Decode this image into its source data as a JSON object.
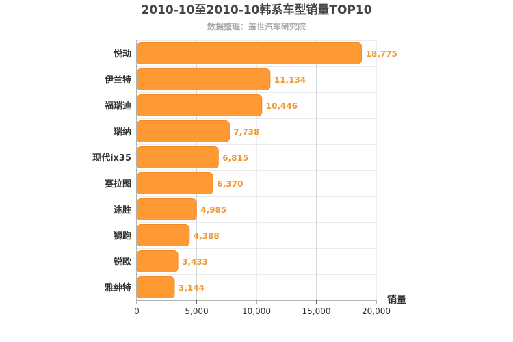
{
  "chart_data": {
    "type": "bar",
    "orientation": "horizontal",
    "title": "2010-10至2010-10韩系车型销量TOP10",
    "subtitle": "数据整理：盖世汽车研究院",
    "xlabel": "销量",
    "ylabel": "",
    "categories": [
      "悦动",
      "伊兰特",
      "福瑞迪",
      "瑞纳",
      "现代ix35",
      "赛拉图",
      "途胜",
      "狮跑",
      "锐欧",
      "雅绅特"
    ],
    "values": [
      18775,
      11134,
      10446,
      7738,
      6815,
      6370,
      4985,
      4388,
      3433,
      3144
    ],
    "value_labels": [
      "18,775",
      "11,134",
      "10,446",
      "7,738",
      "6,815",
      "6,370",
      "4,985",
      "4,388",
      "3,433",
      "3,144"
    ],
    "xlim": [
      0,
      20000
    ],
    "ticks": [
      0,
      5000,
      10000,
      15000,
      20000
    ],
    "tick_labels": [
      "0",
      "5,000",
      "10,000",
      "15,000",
      "20,000"
    ],
    "grid": true,
    "bar_color": "#ff9933",
    "value_label_color": "#f19a33"
  }
}
